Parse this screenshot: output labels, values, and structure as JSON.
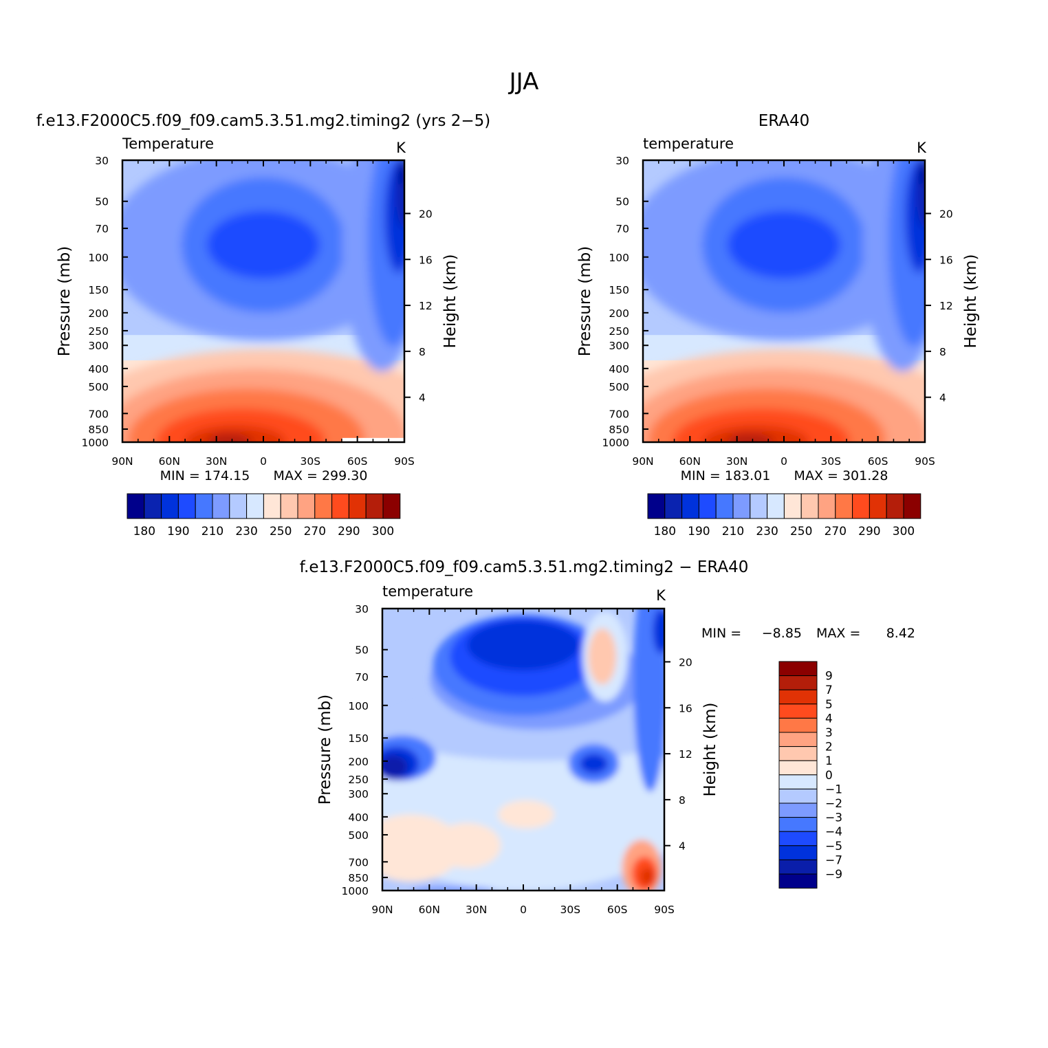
{
  "figure_title": "JJA",
  "colors": {
    "abs_scale": [
      "#00008b",
      "#0a23b0",
      "#0032dc",
      "#1e4bff",
      "#4678ff",
      "#7d9bff",
      "#b4caff",
      "#d7e8ff",
      "#ffe6d7",
      "#ffc8af",
      "#ffa382",
      "#ff7846",
      "#ff4b1e",
      "#e13205",
      "#b41e0a",
      "#8b0000"
    ],
    "diff_scale": [
      "#00008b",
      "#0a1eaa",
      "#0032dc",
      "#1e4bff",
      "#4678ff",
      "#7d9bff",
      "#b4caff",
      "#d7e8ff",
      "#ffe6d7",
      "#ffc8af",
      "#ffa382",
      "#ff7846",
      "#ff4b1e",
      "#e13205",
      "#b41e0a",
      "#8b0000"
    ]
  },
  "chart_data": [
    {
      "type": "heatmap",
      "title": "f.e13.F2000C5.f09_f09.cam5.3.51.mg2.timing2 (yrs 2−5)",
      "left_label": "Temperature",
      "units": "K",
      "ylabel": "Pressure (mb)",
      "ylabel_right": "Height (km)",
      "x_ticks": [
        "90N",
        "60N",
        "30N",
        "0",
        "30S",
        "60S",
        "90S"
      ],
      "y_ticks": [
        "30",
        "50",
        "70",
        "100",
        "150",
        "200",
        "250",
        "300",
        "400",
        "500",
        "700",
        "850",
        "1000"
      ],
      "y_ticks_right": [
        "20",
        "16",
        "12",
        "8",
        "4"
      ],
      "xlim": [
        90,
        -90
      ],
      "ylim_mb": [
        1000,
        30
      ],
      "min_label": "MIN = 174.15",
      "max_label": "MAX = 299.30",
      "stats": {
        "min": 174.15,
        "max": 299.3
      },
      "colorbar_labels": [
        "180",
        "190",
        "210",
        "230",
        "250",
        "270",
        "290",
        "300"
      ],
      "colorbar_levels": [
        180,
        185,
        190,
        200,
        210,
        220,
        230,
        240,
        250,
        260,
        270,
        280,
        290,
        295,
        300
      ]
    },
    {
      "type": "heatmap",
      "title": "ERA40",
      "left_label": "temperature",
      "units": "K",
      "ylabel": "Pressure (mb)",
      "ylabel_right": "Height (km)",
      "x_ticks": [
        "90N",
        "60N",
        "30N",
        "0",
        "30S",
        "60S",
        "90S"
      ],
      "y_ticks": [
        "30",
        "50",
        "70",
        "100",
        "150",
        "200",
        "250",
        "300",
        "400",
        "500",
        "700",
        "850",
        "1000"
      ],
      "y_ticks_right": [
        "20",
        "16",
        "12",
        "8",
        "4"
      ],
      "xlim": [
        90,
        -90
      ],
      "ylim_mb": [
        1000,
        30
      ],
      "min_label": "MIN = 183.01",
      "max_label": "MAX = 301.28",
      "stats": {
        "min": 183.01,
        "max": 301.28
      },
      "colorbar_labels": [
        "180",
        "190",
        "210",
        "230",
        "250",
        "270",
        "290",
        "300"
      ],
      "colorbar_levels": [
        180,
        185,
        190,
        200,
        210,
        220,
        230,
        240,
        250,
        260,
        270,
        280,
        290,
        295,
        300
      ]
    },
    {
      "type": "heatmap",
      "title": "f.e13.F2000C5.f09_f09.cam5.3.51.mg2.timing2 − ERA40",
      "left_label": "temperature",
      "units": "K",
      "ylabel": "Pressure (mb)",
      "ylabel_right": "Height (km)",
      "x_ticks": [
        "90N",
        "60N",
        "30N",
        "0",
        "30S",
        "60S",
        "90S"
      ],
      "y_ticks": [
        "30",
        "50",
        "70",
        "100",
        "150",
        "200",
        "250",
        "300",
        "400",
        "500",
        "700",
        "850",
        "1000"
      ],
      "y_ticks_right": [
        "20",
        "16",
        "12",
        "8",
        "4"
      ],
      "xlim": [
        90,
        -90
      ],
      "ylim_mb": [
        1000,
        30
      ],
      "min_label": "MIN =",
      "min_value": "−8.85",
      "max_label": "MAX =",
      "max_value": "8.42",
      "stats": {
        "min": -8.85,
        "max": 8.42
      },
      "colorbar_labels": [
        "9",
        "7",
        "5",
        "4",
        "3",
        "2",
        "1",
        "0",
        "−1",
        "−2",
        "−3",
        "−4",
        "−5",
        "−7",
        "−9"
      ],
      "colorbar_levels": [
        9,
        7,
        5,
        4,
        3,
        2,
        1,
        0,
        -1,
        -2,
        -3,
        -4,
        -5,
        -7,
        -9
      ]
    }
  ]
}
